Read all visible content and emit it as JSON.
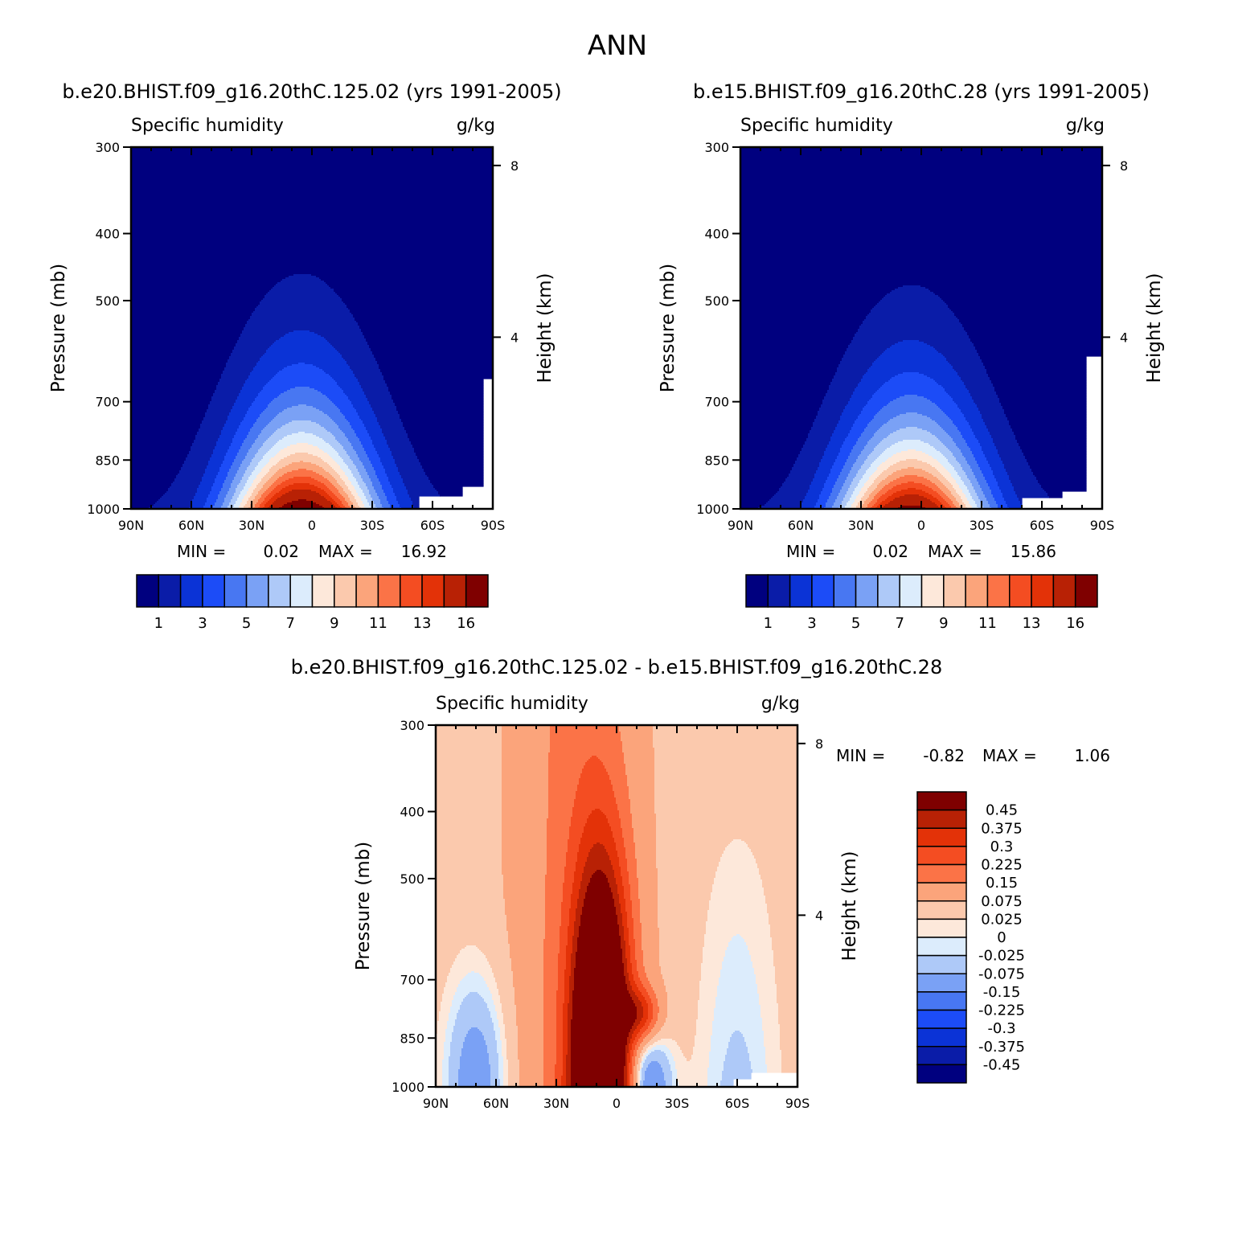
{
  "figure": {
    "title": "ANN"
  },
  "panels": [
    {
      "title": "b.e20.BHIST.f09_g16.20thC.125.02 (yrs 1991-2005)",
      "left_label": "Specific humidity",
      "right_label": "g/kg",
      "ylabel": "Pressure (mb)",
      "ylabel_right": "Height (km)",
      "min_label": "MIN =",
      "min_value": "0.02",
      "max_label": "MAX =",
      "max_value": "16.92",
      "colorbar_labels": [
        "1",
        "3",
        "5",
        "7",
        "9",
        "11",
        "13",
        "16"
      ]
    },
    {
      "title": "b.e15.BHIST.f09_g16.20thC.28 (yrs 1991-2005)",
      "left_label": "Specific humidity",
      "right_label": "g/kg",
      "ylabel": "Pressure (mb)",
      "ylabel_right": "Height (km)",
      "min_label": "MIN =",
      "min_value": "0.02",
      "max_label": "MAX =",
      "max_value": "15.86",
      "colorbar_labels": [
        "1",
        "3",
        "5",
        "7",
        "9",
        "11",
        "13",
        "16"
      ]
    },
    {
      "title": "b.e20.BHIST.f09_g16.20thC.125.02 - b.e15.BHIST.f09_g16.20thC.28",
      "left_label": "Specific humidity",
      "right_label": "g/kg",
      "ylabel": "Pressure (mb)",
      "ylabel_right": "Height (km)",
      "min_label": "MIN =",
      "min_value": "-0.82",
      "max_label": "MAX =",
      "max_value": "1.06",
      "colorbar_labels": [
        "0.45",
        "0.375",
        "0.3",
        "0.225",
        "0.15",
        "0.075",
        "0.025",
        "0",
        "-0.025",
        "-0.075",
        "-0.15",
        "-0.225",
        "-0.3",
        "-0.375",
        "-0.45"
      ]
    }
  ],
  "chart_data": [
    {
      "type": "heatmap",
      "title": "b.e20.BHIST.f09_g16.20thC.125.02 (yrs 1991-2005)",
      "variable": "Specific humidity",
      "units": "g/kg",
      "xlabel": "",
      "ylabel": "Pressure (mb)",
      "ylabel_right": "Height (km)",
      "x_ticks": [
        "90N",
        "60N",
        "30N",
        "0",
        "30S",
        "60S",
        "90S"
      ],
      "y_ticks": [
        300,
        400,
        500,
        700,
        850,
        1000
      ],
      "y_right_ticks": [
        8,
        4
      ],
      "ylim": [
        1000,
        300
      ],
      "y_scale": "log",
      "levels": [
        1,
        2,
        3,
        4,
        5,
        6,
        7,
        8,
        9,
        10,
        11,
        12,
        13,
        14,
        16
      ],
      "colors": [
        "#00007f",
        "#0a1ca8",
        "#0b33d6",
        "#1c4cf7",
        "#4877f2",
        "#7aa1f5",
        "#aec9f8",
        "#dcecfc",
        "#fde8da",
        "#fbc9ad",
        "#fba47b",
        "#fb7347",
        "#f44d22",
        "#e33208",
        "#b82105",
        "#7f0000"
      ],
      "min": 0.02,
      "max": 16.92,
      "peak_latitude": 5,
      "peak_value": 16.92,
      "missing_region": "near 1000 mb south of 60S"
    },
    {
      "type": "heatmap",
      "title": "b.e15.BHIST.f09_g16.20thC.28 (yrs 1991-2005)",
      "variable": "Specific humidity",
      "units": "g/kg",
      "xlabel": "",
      "ylabel": "Pressure (mb)",
      "ylabel_right": "Height (km)",
      "x_ticks": [
        "90N",
        "60N",
        "30N",
        "0",
        "30S",
        "60S",
        "90S"
      ],
      "y_ticks": [
        300,
        400,
        500,
        700,
        850,
        1000
      ],
      "y_right_ticks": [
        8,
        4
      ],
      "ylim": [
        1000,
        300
      ],
      "y_scale": "log",
      "levels": [
        1,
        2,
        3,
        4,
        5,
        6,
        7,
        8,
        9,
        10,
        11,
        12,
        13,
        14,
        16
      ],
      "colors": [
        "#00007f",
        "#0a1ca8",
        "#0b33d6",
        "#1c4cf7",
        "#4877f2",
        "#7aa1f5",
        "#aec9f8",
        "#dcecfc",
        "#fde8da",
        "#fbc9ad",
        "#fba47b",
        "#fb7347",
        "#f44d22",
        "#e33208",
        "#b82105",
        "#7f0000"
      ],
      "min": 0.02,
      "max": 15.86,
      "peak_latitude": 5,
      "peak_value": 15.86,
      "missing_region": "near 1000 mb south of 60S"
    },
    {
      "type": "heatmap",
      "title": "b.e20.BHIST.f09_g16.20thC.125.02 - b.e15.BHIST.f09_g16.20thC.28",
      "variable": "Specific humidity",
      "units": "g/kg",
      "xlabel": "",
      "ylabel": "Pressure (mb)",
      "ylabel_right": "Height (km)",
      "x_ticks": [
        "90N",
        "60N",
        "30N",
        "0",
        "30S",
        "60S",
        "90S"
      ],
      "y_ticks": [
        300,
        400,
        500,
        700,
        850,
        1000
      ],
      "y_right_ticks": [
        8,
        4
      ],
      "ylim": [
        1000,
        300
      ],
      "y_scale": "log",
      "levels": [
        -0.45,
        -0.375,
        -0.3,
        -0.225,
        -0.15,
        -0.075,
        -0.025,
        0,
        0.025,
        0.075,
        0.15,
        0.225,
        0.3,
        0.375,
        0.45
      ],
      "colors": [
        "#00007f",
        "#0a1ca8",
        "#0b33d6",
        "#1c4cf7",
        "#4877f2",
        "#7aa1f5",
        "#aec9f8",
        "#dcecfc",
        "#fde8da",
        "#fbc9ad",
        "#fba47b",
        "#fb7347",
        "#f44d22",
        "#e33208",
        "#b82105",
        "#7f0000"
      ],
      "min": -0.82,
      "max": 1.06,
      "feature": "positive maximum in tropics between 30N and 15S extending up to about 500 mb; negative values north of 45N below 700 mb and south of 20S"
    }
  ]
}
